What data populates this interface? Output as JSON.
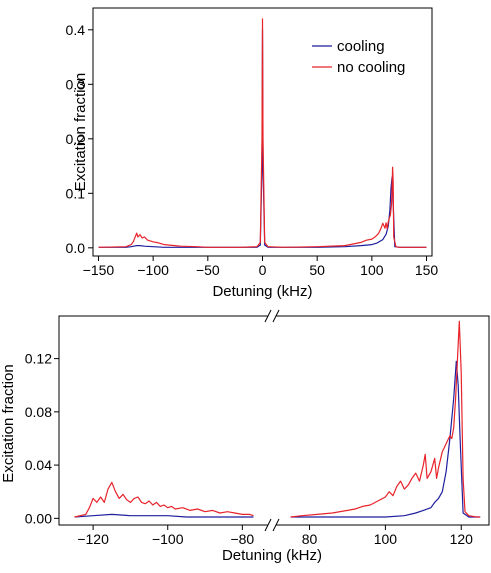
{
  "chart_data": [
    {
      "type": "line",
      "title": "",
      "xlabel": "Detuning (kHz)",
      "ylabel": "Excitation fraction",
      "xlim": [
        -155,
        155
      ],
      "ylim": [
        -0.015,
        0.44
      ],
      "xticks": [
        -150,
        -100,
        -50,
        0,
        50,
        100,
        150
      ],
      "xtick_labels": [
        "−150",
        "−100",
        "−50",
        "0",
        "50",
        "100",
        "150"
      ],
      "yticks": [
        0.0,
        0.1,
        0.2,
        0.3,
        0.4
      ],
      "ytick_labels": [
        "0.0",
        "0.1",
        "0.2",
        "0.3",
        "0.4"
      ],
      "grid": false,
      "legend_position": "top-right",
      "series": [
        {
          "name": "cooling",
          "color": "#1f1f9e",
          "x": [
            -150,
            -125,
            -120,
            -118,
            -115,
            -112,
            -108,
            -100,
            -90,
            -75,
            -50,
            -20,
            -5,
            -2,
            -0.5,
            0,
            0.5,
            2,
            5,
            20,
            50,
            75,
            90,
            100,
            105,
            110,
            113,
            115,
            116.5,
            117.5,
            118.5,
            119.5,
            121,
            125,
            150
          ],
          "y": [
            0.001,
            0.001,
            0.002,
            0.003,
            0.004,
            0.004,
            0.003,
            0.002,
            0.001,
            0.001,
            0.001,
            0.001,
            0.001,
            0.005,
            0.15,
            0.4,
            0.15,
            0.005,
            0.001,
            0.001,
            0.001,
            0.002,
            0.004,
            0.006,
            0.009,
            0.015,
            0.025,
            0.04,
            0.07,
            0.11,
            0.13,
            0.08,
            0.002,
            0.001,
            0.001
          ]
        },
        {
          "name": "no cooling",
          "color": "#e8242b",
          "x": [
            -150,
            -125,
            -120,
            -118,
            -116,
            -115,
            -114,
            -112,
            -110,
            -108,
            -105,
            -100,
            -95,
            -90,
            -85,
            -80,
            -75,
            -60,
            -50,
            -20,
            -5,
            -2,
            -0.5,
            0,
            0.5,
            2,
            5,
            20,
            50,
            75,
            80,
            90,
            95,
            100,
            103,
            106,
            108,
            110,
            112,
            113,
            114,
            115,
            116,
            117,
            118,
            118.5,
            119,
            119.5,
            120,
            122,
            125,
            150
          ],
          "y": [
            0.001,
            0.002,
            0.006,
            0.012,
            0.022,
            0.027,
            0.02,
            0.024,
            0.018,
            0.02,
            0.014,
            0.011,
            0.009,
            0.006,
            0.005,
            0.004,
            0.003,
            0.002,
            0.001,
            0.001,
            0.002,
            0.01,
            0.2,
            0.42,
            0.2,
            0.01,
            0.002,
            0.001,
            0.002,
            0.004,
            0.006,
            0.01,
            0.014,
            0.016,
            0.02,
            0.026,
            0.034,
            0.045,
            0.036,
            0.046,
            0.035,
            0.048,
            0.055,
            0.06,
            0.08,
            0.11,
            0.148,
            0.12,
            0.02,
            0.002,
            0.001,
            0.001
          ]
        }
      ]
    },
    {
      "type": "line",
      "title": "",
      "xlabel": "Detuning (kHz)",
      "ylabel": "Excitation fraction",
      "broken_axis": true,
      "segments": [
        {
          "xlim": [
            -127,
            -75
          ],
          "xticks": [
            -120,
            -100,
            -80
          ],
          "xtick_labels": [
            "−120",
            "−100",
            "−80"
          ]
        },
        {
          "xlim": [
            73,
            126
          ],
          "xticks": [
            80,
            100,
            120
          ],
          "xtick_labels": [
            "80",
            "100",
            "120"
          ]
        }
      ],
      "ylim": [
        -0.005,
        0.152
      ],
      "yticks": [
        0.0,
        0.04,
        0.08,
        0.12
      ],
      "ytick_labels": [
        "0.00",
        "0.04",
        "0.08",
        "0.12"
      ],
      "grid": false,
      "series": [
        {
          "name": "cooling",
          "color": "#1f1f9e",
          "x": [
            -125,
            -120,
            -115,
            -110,
            -105,
            -100,
            -95,
            -90,
            -85,
            -80,
            -77,
            75,
            80,
            85,
            90,
            95,
            100,
            105,
            108,
            110,
            112,
            113,
            114,
            115,
            116,
            117,
            118,
            118.7,
            119.2,
            119.7,
            120.5,
            122,
            125
          ],
          "y": [
            0.001,
            0.002,
            0.003,
            0.002,
            0.002,
            0.002,
            0.001,
            0.001,
            0.001,
            0.001,
            0.001,
            0.001,
            0.001,
            0.001,
            0.001,
            0.001,
            0.001,
            0.002,
            0.004,
            0.006,
            0.008,
            0.012,
            0.015,
            0.02,
            0.035,
            0.06,
            0.09,
            0.118,
            0.1,
            0.06,
            0.004,
            0.001,
            0.001
          ]
        },
        {
          "name": "no cooling",
          "color": "#e8242b",
          "x": [
            -125,
            -122,
            -121,
            -120,
            -119,
            -118,
            -117,
            -116,
            -115,
            -114,
            -113,
            -112,
            -111,
            -110,
            -109,
            -108,
            -107,
            -106,
            -105,
            -104,
            -103,
            -102,
            -101,
            -100,
            -99,
            -98,
            -96,
            -94,
            -92,
            -90,
            -88,
            -86,
            -84,
            -82,
            -80,
            -78,
            -77,
            75,
            78,
            82,
            86,
            90,
            92,
            94,
            96,
            98,
            100,
            101,
            102,
            103,
            104,
            105,
            106,
            107,
            108,
            109,
            110,
            110.5,
            111,
            112,
            113,
            113.5,
            114,
            115,
            116,
            117,
            117.5,
            118,
            118.5,
            119,
            119.5,
            120,
            120.5,
            121,
            122,
            124,
            125
          ],
          "y": [
            0.001,
            0.003,
            0.008,
            0.015,
            0.012,
            0.016,
            0.012,
            0.022,
            0.027,
            0.02,
            0.015,
            0.018,
            0.014,
            0.012,
            0.015,
            0.016,
            0.012,
            0.011,
            0.013,
            0.01,
            0.012,
            0.009,
            0.01,
            0.008,
            0.009,
            0.007,
            0.008,
            0.006,
            0.007,
            0.005,
            0.006,
            0.004,
            0.005,
            0.004,
            0.003,
            0.003,
            0.002,
            0.001,
            0.002,
            0.003,
            0.004,
            0.006,
            0.007,
            0.009,
            0.01,
            0.013,
            0.016,
            0.02,
            0.017,
            0.024,
            0.028,
            0.022,
            0.025,
            0.03,
            0.034,
            0.028,
            0.04,
            0.048,
            0.03,
            0.035,
            0.045,
            0.03,
            0.038,
            0.05,
            0.056,
            0.062,
            0.06,
            0.068,
            0.09,
            0.12,
            0.148,
            0.11,
            0.03,
            0.005,
            0.002,
            0.001,
            0.001
          ]
        }
      ]
    }
  ]
}
